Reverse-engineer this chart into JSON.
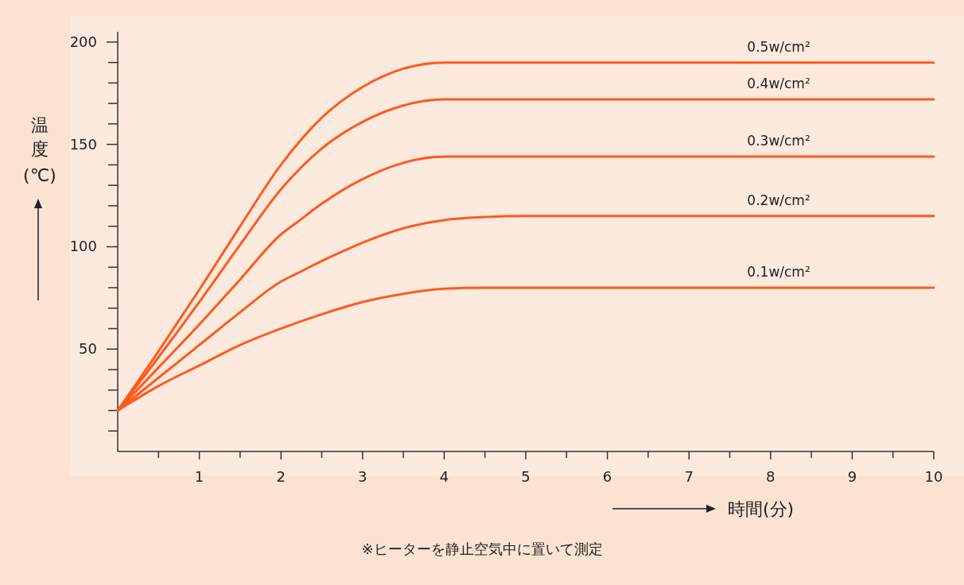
{
  "chart_data": {
    "type": "line",
    "xlabel": "時間(分)",
    "ylabel": "温度(℃)",
    "annotations": [
      "※ヒーターを静止空気中に置いて測定"
    ],
    "xlim": [
      0,
      10
    ],
    "ylim": [
      0,
      205
    ],
    "xticks": [
      {
        "value": 0.5,
        "label": null
      },
      1,
      {
        "value": 1.5,
        "label": null
      },
      2,
      {
        "value": 2.5,
        "label": null
      },
      3,
      {
        "value": 3.5,
        "label": null
      },
      4,
      {
        "value": 4.5,
        "label": null
      },
      5,
      {
        "value": 5.5,
        "label": null
      },
      6,
      {
        "value": 6.5,
        "label": null
      },
      7,
      {
        "value": 7.5,
        "label": null
      },
      8,
      {
        "value": 8.5,
        "label": null
      },
      9,
      {
        "value": 9.5,
        "label": null
      },
      10
    ],
    "yticks": [
      {
        "value": 10,
        "label": null
      },
      {
        "value": 20,
        "label": null
      },
      {
        "value": 30,
        "label": null
      },
      {
        "value": 40,
        "label": null
      },
      50,
      {
        "value": 60,
        "label": null
      },
      {
        "value": 70,
        "label": null
      },
      {
        "value": 80,
        "label": null
      },
      {
        "value": 90,
        "label": null
      },
      100,
      {
        "value": 110,
        "label": null
      },
      {
        "value": 120,
        "label": null
      },
      {
        "value": 130,
        "label": null
      },
      {
        "value": 140,
        "label": null
      },
      150,
      {
        "value": 160,
        "label": null
      },
      {
        "value": 170,
        "label": null
      },
      {
        "value": 180,
        "label": null
      },
      {
        "value": 190,
        "label": null
      },
      200
    ],
    "grid": false,
    "marker": "none",
    "line_style": "solid",
    "series": [
      {
        "name": "0.5w/cm²",
        "color": "#ff5a1e",
        "x": [
          0,
          0.5,
          1,
          1.5,
          2,
          2.5,
          3,
          3.5,
          4,
          4.5,
          10
        ],
        "values": [
          20,
          49,
          79,
          110,
          140,
          163,
          178,
          187,
          190,
          190,
          190
        ]
      },
      {
        "name": "0.4w/cm²",
        "color": "#ff5a1e",
        "x": [
          0,
          0.5,
          1,
          1.5,
          2,
          2.5,
          3,
          3.5,
          4,
          4.5,
          10
        ],
        "values": [
          20,
          46,
          73,
          101,
          128,
          148,
          161,
          169,
          172,
          172,
          172
        ]
      },
      {
        "name": "0.3w/cm²",
        "color": "#ff5a1e",
        "x": [
          0,
          0.5,
          1,
          1.5,
          2,
          2.2,
          2.5,
          3,
          3.5,
          4,
          4.5,
          10
        ],
        "values": [
          20,
          41,
          62,
          84,
          106,
          112,
          121,
          133,
          141,
          144,
          144,
          144
        ]
      },
      {
        "name": "0.2w/cm²",
        "color": "#ff5a1e",
        "x": [
          0,
          0.5,
          1,
          1.5,
          2,
          2.2,
          2.5,
          3,
          3.5,
          4,
          4.5,
          5,
          10
        ],
        "values": [
          20,
          36,
          52,
          68,
          83,
          87,
          93,
          102,
          109,
          113,
          114.5,
          115,
          115
        ]
      },
      {
        "name": "0.1w/cm²",
        "color": "#ff5a1e",
        "x": [
          0,
          0.5,
          1,
          1.5,
          2,
          2.5,
          3,
          3.5,
          4,
          4.5,
          10
        ],
        "values": [
          20,
          32,
          42,
          52,
          60,
          67,
          73,
          77,
          79.5,
          80,
          80
        ]
      }
    ]
  }
}
